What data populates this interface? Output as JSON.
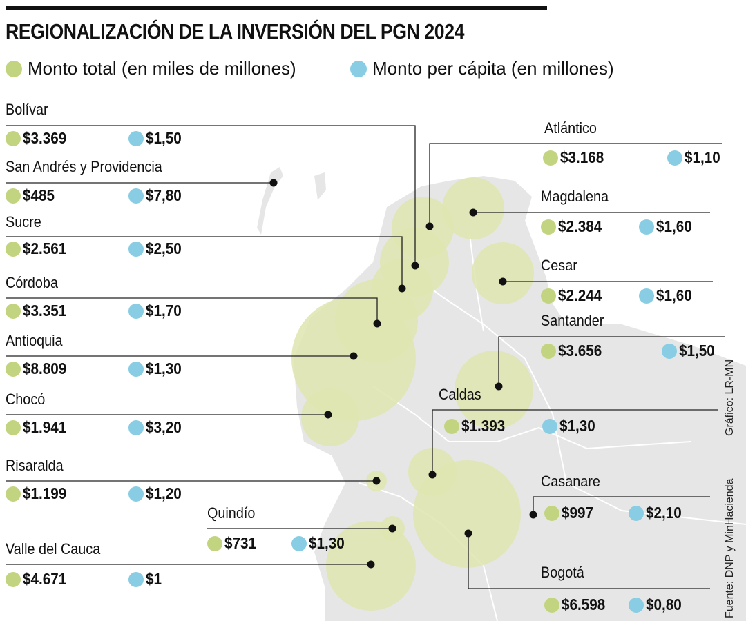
{
  "title": "REGIONALIZACIÓN DE LA INVERSIÓN DEL PGN 2024",
  "legend": [
    {
      "label": "Monto total (en miles de millones)",
      "color": "#c3d481"
    },
    {
      "label": "Monto per cápita (en millones)",
      "color": "#88cde3"
    }
  ],
  "colors": {
    "total": "#c3d481",
    "per_capita": "#88cde3",
    "bubble": "#dfe5b0",
    "land": "#e6e6e6",
    "border": "#ffffff"
  },
  "regions": [
    {
      "name": "Bolívar",
      "total": "$3.369",
      "per_capita": "$1,50"
    },
    {
      "name": "San Andrés y Providencia",
      "total": "$485",
      "per_capita": "$7,80"
    },
    {
      "name": "Sucre",
      "total": "$2.561",
      "per_capita": "$2,50"
    },
    {
      "name": "Córdoba",
      "total": "$3.351",
      "per_capita": "$1,70"
    },
    {
      "name": "Antioquia",
      "total": "$8.809",
      "per_capita": "$1,30"
    },
    {
      "name": "Chocó",
      "total": "$1.941",
      "per_capita": "$3,20"
    },
    {
      "name": "Risaralda",
      "total": "$1.199",
      "per_capita": "$1,20"
    },
    {
      "name": "Quindío",
      "total": "$731",
      "per_capita": "$1,30"
    },
    {
      "name": "Valle del Cauca",
      "total": "$4.671",
      "per_capita": "$1"
    },
    {
      "name": "Atlántico",
      "total": "$3.168",
      "per_capita": "$1,10"
    },
    {
      "name": "Magdalena",
      "total": "$2.384",
      "per_capita": "$1,60"
    },
    {
      "name": "Cesar",
      "total": "$2.244",
      "per_capita": "$1,60"
    },
    {
      "name": "Santander",
      "total": "$3.656",
      "per_capita": "$1,50"
    },
    {
      "name": "Caldas",
      "total": "$1.393",
      "per_capita": "$1,30"
    },
    {
      "name": "Casanare",
      "total": "$997",
      "per_capita": "$2,10"
    },
    {
      "name": "Bogotá",
      "total": "$6.598",
      "per_capita": "$0,80"
    }
  ],
  "credits": {
    "graphic": "Gráfico: LR-MN",
    "source": "Fuente: DNP y MinHacienda"
  }
}
